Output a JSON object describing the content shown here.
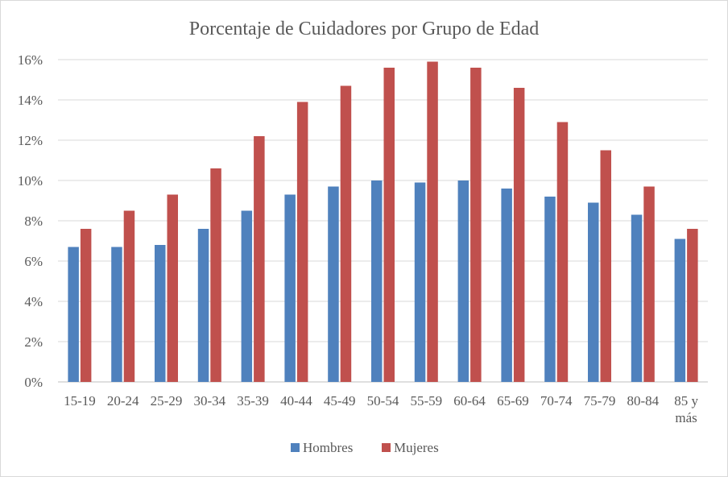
{
  "chart_data": {
    "type": "bar",
    "title": "Porcentaje de Cuidadores por Grupo de Edad",
    "xlabel": "",
    "ylabel": "",
    "ylim": [
      0,
      16
    ],
    "yticks": [
      "0%",
      "2%",
      "4%",
      "6%",
      "8%",
      "10%",
      "12%",
      "14%",
      "16%"
    ],
    "grid": true,
    "legend_position": "bottom",
    "categories": [
      [
        "15-19"
      ],
      [
        "20-24"
      ],
      [
        "25-29"
      ],
      [
        "30-34"
      ],
      [
        "35-39"
      ],
      [
        "40-44"
      ],
      [
        "45-49"
      ],
      [
        "50-54"
      ],
      [
        "55-59"
      ],
      [
        "60-64"
      ],
      [
        "65-69"
      ],
      [
        "70-74"
      ],
      [
        "75-79"
      ],
      [
        "80-84"
      ],
      [
        "85 y",
        "más"
      ]
    ],
    "series": [
      {
        "name": "Hombres",
        "color": "#4f81bd",
        "values": [
          6.7,
          6.7,
          6.8,
          7.6,
          8.5,
          9.3,
          9.7,
          10.0,
          9.9,
          10.0,
          9.6,
          9.2,
          8.9,
          8.3,
          7.1
        ]
      },
      {
        "name": "Mujeres",
        "color": "#c0504d",
        "values": [
          7.6,
          8.5,
          9.3,
          10.6,
          12.2,
          13.9,
          14.7,
          15.6,
          15.9,
          15.6,
          14.6,
          12.9,
          11.5,
          9.7,
          7.6
        ]
      }
    ]
  }
}
